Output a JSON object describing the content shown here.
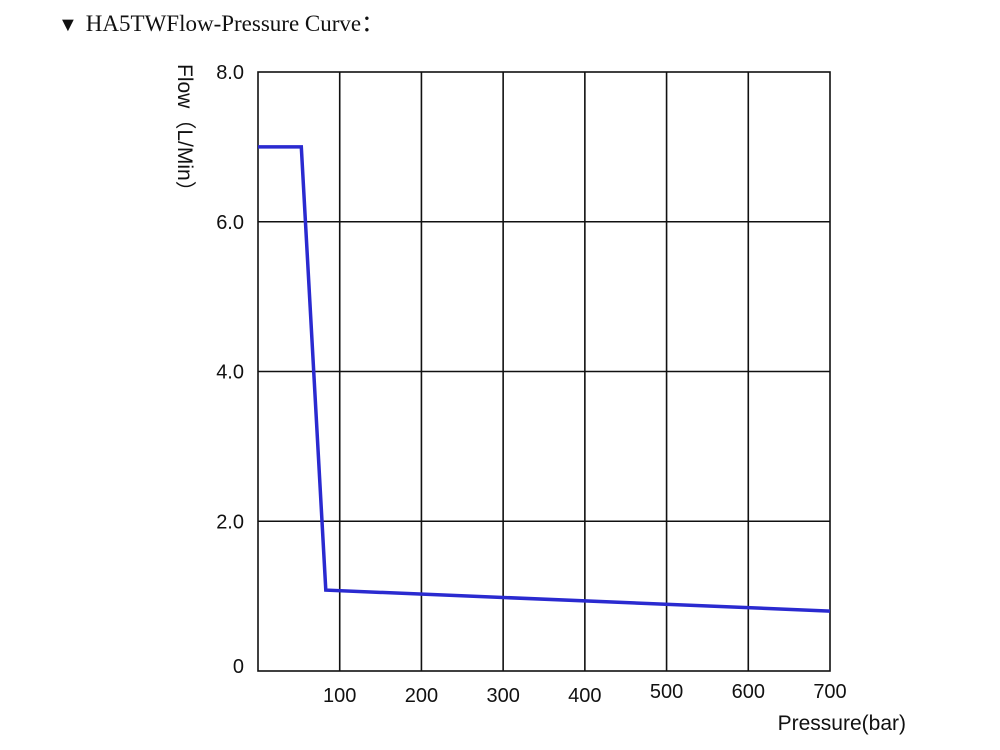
{
  "heading": {
    "marker": "▼",
    "text": "HA5TWFlow-Pressure Curve："
  },
  "chart_data": {
    "type": "line",
    "title": "HA5TWFlow-Pressure Curve：",
    "xlabel": "Pressure(bar)",
    "ylabel": "Flow（L/Min）",
    "xlim": [
      0,
      700
    ],
    "ylim": [
      0,
      8.0
    ],
    "x_ticks": [
      100,
      200,
      300,
      400,
      500,
      600,
      700
    ],
    "x_tick_labels": [
      "100",
      "200",
      "300",
      "400",
      "500",
      "600",
      "700"
    ],
    "y_ticks": [
      0,
      2.0,
      4.0,
      6.0,
      8.0
    ],
    "y_tick_labels": [
      "0",
      "2.0",
      "4.0",
      "6.0",
      "8.0"
    ],
    "grid": true,
    "series": [
      {
        "color": "#2a2ad0",
        "x": [
          0,
          53,
          83,
          700
        ],
        "y": [
          7.0,
          7.0,
          1.08,
          0.8
        ]
      }
    ]
  }
}
